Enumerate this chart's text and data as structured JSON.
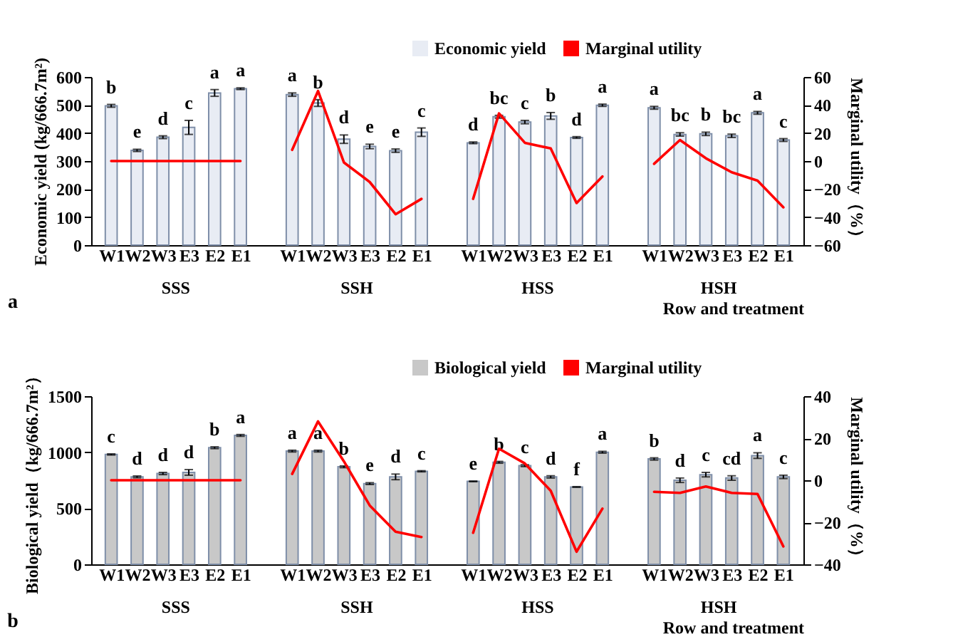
{
  "chart_data": [
    {
      "type": "bar",
      "xlabel": "Row and treatment",
      "ylabel": "Economic yield (kg/666.7m²)",
      "y2label": "Marginal utility（%）",
      "categories": [
        "W1",
        "W2",
        "W3",
        "E3",
        "E2",
        "E1",
        null,
        "W1",
        "W2",
        "W3",
        "E3",
        "E2",
        "E1",
        null,
        "W1",
        "W2",
        "W3",
        "E3",
        "E2",
        "E1",
        null,
        "W1",
        "W2",
        "W3",
        "E3",
        "E2",
        "E1"
      ],
      "annotations": [
        "a",
        "SSS",
        "SSH",
        "HSS",
        "HSH"
      ],
      "ylim": [
        0,
        600
      ],
      "yticks": [
        0,
        100,
        200,
        300,
        400,
        500,
        600
      ],
      "y2lim": [
        -60,
        60
      ],
      "y2ticks": [
        -60,
        -40,
        -20,
        0,
        20,
        40,
        60
      ],
      "legend": "top right",
      "grid": false,
      "series": [
        {
          "name": "Economic yield",
          "type": "bar",
          "color": "#e8ecf4",
          "values": [
            497,
            338,
            385,
            420,
            543,
            558,
            null,
            537,
            507,
            378,
            352,
            337,
            403,
            null,
            365,
            458,
            439,
            461,
            384,
            499,
            null,
            490,
            395,
            397,
            390,
            472,
            375
          ],
          "errors": [
            5,
            4,
            5,
            25,
            12,
            3,
            null,
            6,
            12,
            15,
            8,
            6,
            15,
            null,
            3,
            5,
            6,
            12,
            3,
            4,
            null,
            5,
            6,
            6,
            6,
            5,
            5
          ],
          "value_labels": [
            "b",
            "e",
            "d",
            "c",
            "a",
            "a",
            null,
            "a",
            "b",
            "d",
            "e",
            "e",
            "c",
            null,
            "d",
            "bc",
            "c",
            "b",
            "d",
            "a",
            null,
            "a",
            "bc",
            "b",
            "bc",
            "a",
            "c"
          ]
        },
        {
          "name": "Marginal utility",
          "type": "line",
          "axis": "y2",
          "color": "#ff0000",
          "values": [
            0,
            0,
            0,
            0,
            0,
            0,
            null,
            8,
            50,
            -1,
            -15,
            -38,
            -27,
            null,
            -27,
            34,
            13,
            9,
            -30,
            -11,
            null,
            -2,
            15,
            2,
            -8,
            -14,
            -33
          ]
        }
      ]
    },
    {
      "type": "bar",
      "xlabel": "Row and treatment",
      "ylabel": "Biological yield（kg/666.7m²）",
      "y2label": "Marginal utility（%）",
      "categories": [
        "W1",
        "W2",
        "W3",
        "E3",
        "E2",
        "E1",
        null,
        "W1",
        "W2",
        "W3",
        "E3",
        "E2",
        "E1",
        null,
        "W1",
        "W2",
        "W3",
        "E3",
        "E2",
        "E1",
        null,
        "W1",
        "W2",
        "W3",
        "E3",
        "E2",
        "E1"
      ],
      "annotations": [
        "b",
        "SSS",
        "SSH",
        "HSS",
        "HSH"
      ],
      "ylim": [
        0,
        1500
      ],
      "yticks": [
        0,
        500,
        1000,
        1500
      ],
      "y2lim": [
        -40,
        40
      ],
      "y2ticks": [
        -40,
        -20,
        0,
        20,
        40
      ],
      "legend": "top right",
      "grid": false,
      "series": [
        {
          "name": "Biological yield",
          "type": "bar",
          "color": "#c8c8c8",
          "values": [
            980,
            780,
            810,
            820,
            1040,
            1150,
            null,
            1010,
            1010,
            870,
            720,
            780,
            830,
            null,
            740,
            910,
            880,
            780,
            690,
            1000,
            null,
            940,
            750,
            800,
            770,
            970,
            780
          ],
          "errors": [
            5,
            8,
            10,
            25,
            8,
            8,
            null,
            8,
            8,
            8,
            8,
            25,
            5,
            null,
            3,
            8,
            8,
            10,
            3,
            8,
            null,
            10,
            20,
            20,
            20,
            25,
            15
          ],
          "value_labels": [
            "c",
            "d",
            "d",
            "d",
            "b",
            "a",
            null,
            "a",
            "a",
            "b",
            "e",
            "d",
            "c",
            null,
            "e",
            "b",
            "c",
            "d",
            "f",
            "a",
            null,
            "b",
            "d",
            "c",
            "cd",
            "a",
            "c"
          ]
        },
        {
          "name": "Marginal utility",
          "type": "line",
          "axis": "y2",
          "color": "#ff0000",
          "values": [
            0,
            0,
            0,
            0,
            0,
            0,
            null,
            3,
            28,
            9,
            -12,
            -24.5,
            -27,
            null,
            -25,
            15,
            8,
            -5,
            -34,
            -13.5,
            null,
            -5.5,
            -6,
            -3,
            -6,
            -6.5,
            -31.5
          ]
        }
      ]
    }
  ]
}
